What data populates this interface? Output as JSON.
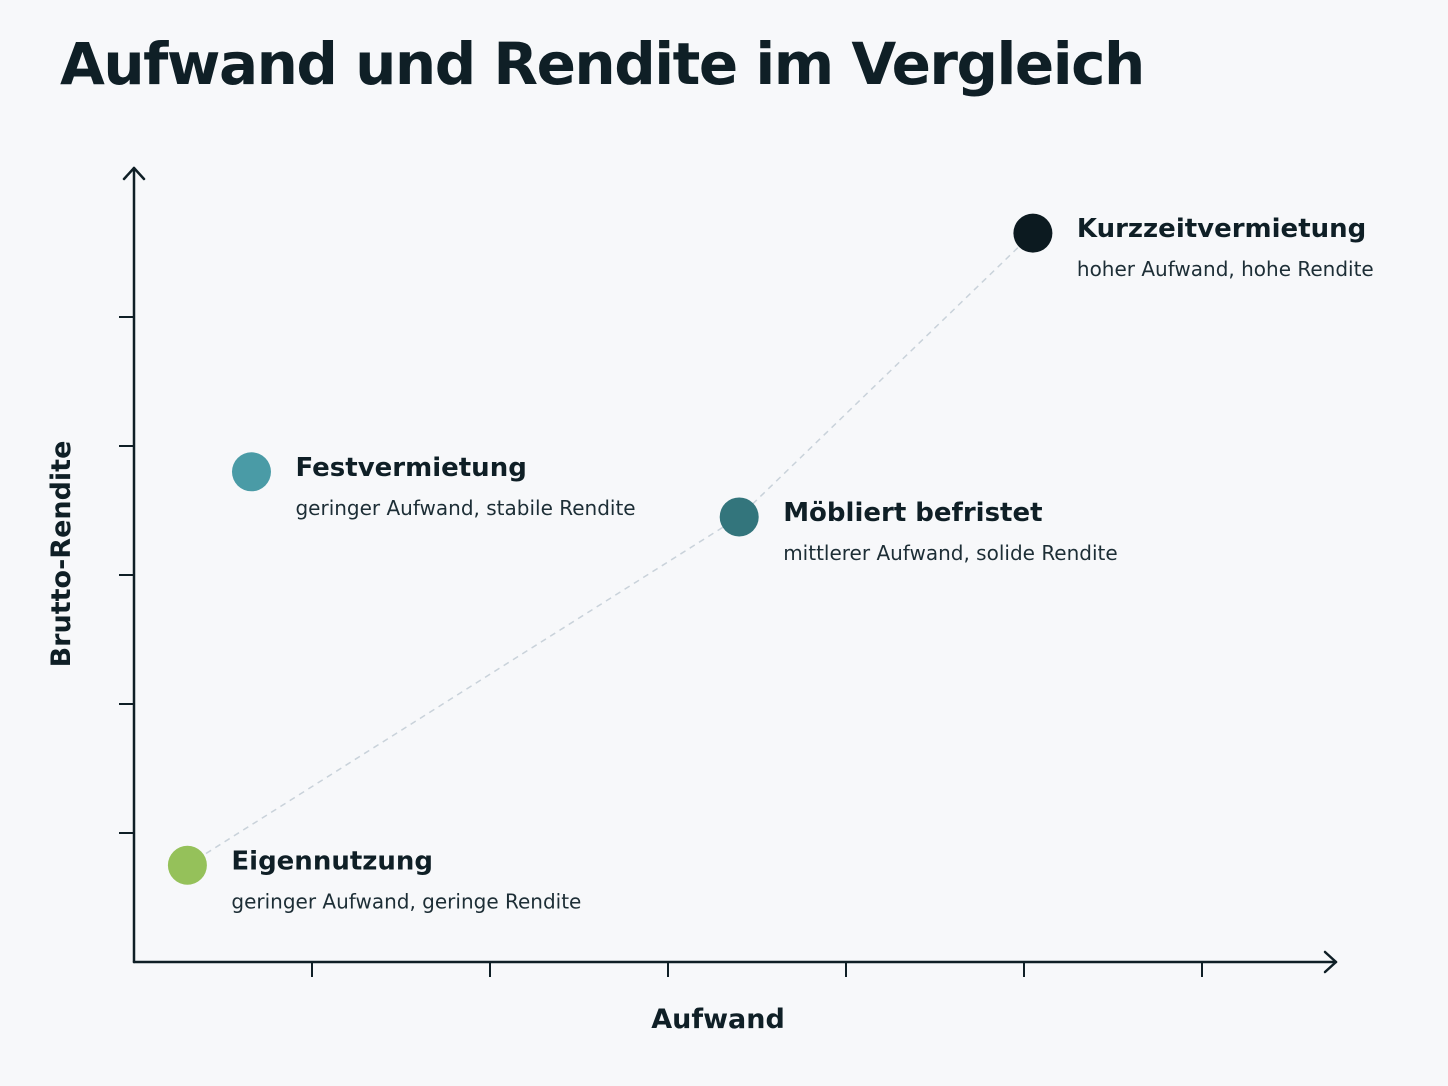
{
  "title": "Aufwand und Rendite im Vergleich",
  "colors": {
    "background": "#f7f8fa",
    "axis": "#0f1f26",
    "trend_line": "#c9d2da"
  },
  "chart_data": {
    "type": "scatter",
    "xlabel": "Aufwand",
    "ylabel": "Brutto-Rendite",
    "xlim": [
      0,
      6.5
    ],
    "ylim": [
      0,
      6.5
    ],
    "x_ticks": [
      1,
      2,
      3,
      4,
      5,
      6
    ],
    "y_ticks": [
      1,
      2,
      3,
      4,
      5
    ],
    "grid": false,
    "legend": "none",
    "points": [
      {
        "name": "Eigennutzung",
        "description": "geringer Aufwand, geringe Rendite",
        "x": 0.3,
        "y": 0.75,
        "color": "#95c15a"
      },
      {
        "name": "Festvermietung",
        "description": "geringer Aufwand, stabile Rendite",
        "x": 0.66,
        "y": 3.8,
        "color": "#4a9ba6"
      },
      {
        "name": "Möbliert befristet",
        "description": "mittlerer Aufwand, solide Rendite",
        "x": 3.4,
        "y": 3.45,
        "color": "#33757c"
      },
      {
        "name": "Kurzzeitvermietung",
        "description": "hoher Aufwand, hohe Rendite",
        "x": 5.05,
        "y": 5.65,
        "color": "#0c1a20"
      }
    ],
    "trend_line_through": [
      "Eigennutzung",
      "Möbliert befristet",
      "Kurzzeitvermietung"
    ]
  }
}
